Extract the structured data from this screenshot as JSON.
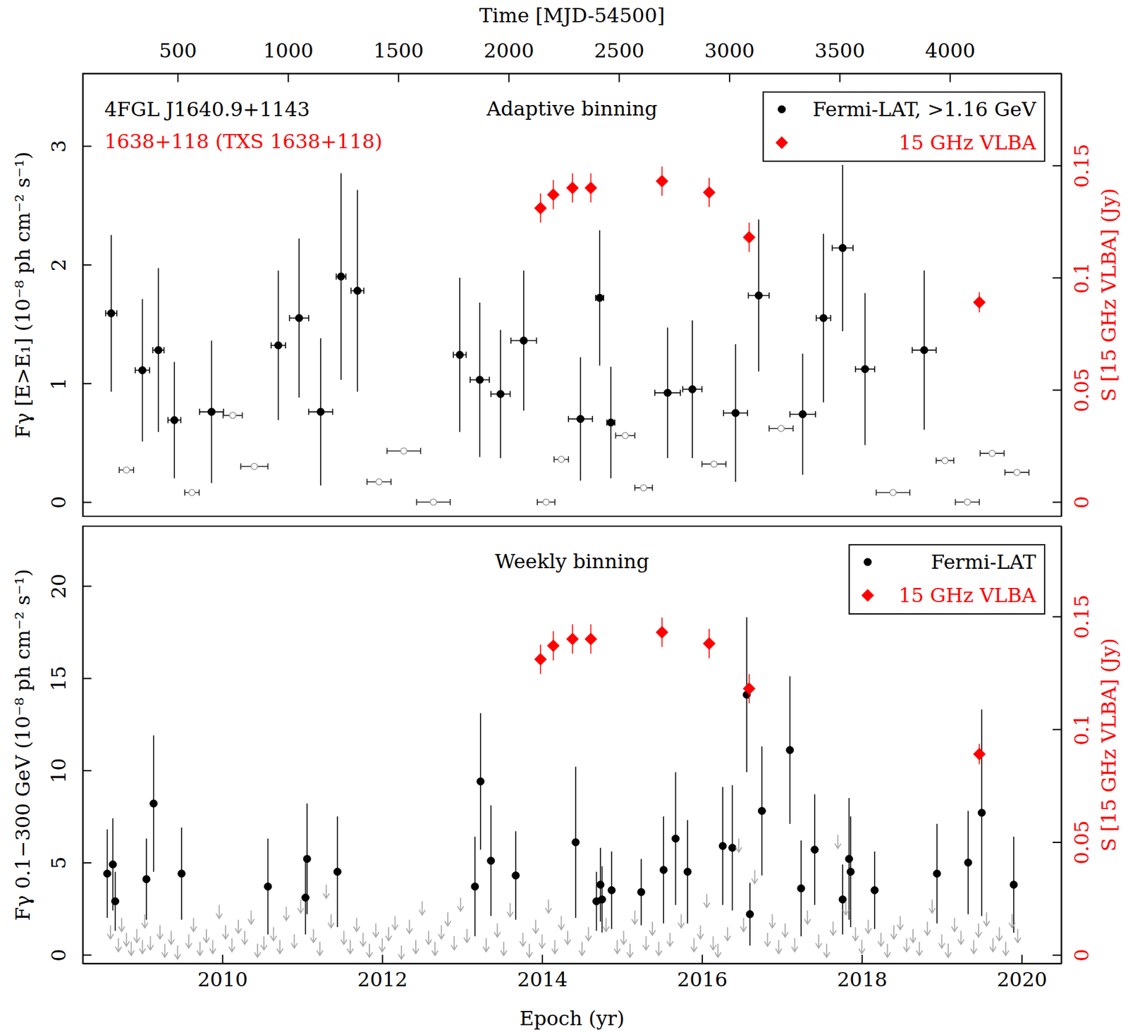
{
  "chart_data": [
    {
      "type": "scatter",
      "title": "Adaptive binning",
      "annotations": [
        {
          "text": "4FGL J1640.9+1143",
          "color": "#000000"
        },
        {
          "text": "1638+118 (TXS 1638+118)",
          "color": "#ff0000"
        }
      ],
      "xlim": [
        2008.254,
        2020.495
      ],
      "x2lim": [
        70,
        4505
      ],
      "x2ticks": [
        500,
        1000,
        1500,
        2000,
        2500,
        3000,
        3500,
        4000
      ],
      "x2label": "Time [MJD-54500]",
      "ylim": [
        -0.12,
        3.61
      ],
      "yticks": [
        0,
        1,
        2,
        3
      ],
      "ylabel": "Fγ [E>E₁] (10⁻⁸ ph cm⁻² s⁻¹)",
      "y2lim": [
        -0.0064,
        0.191
      ],
      "y2ticks": [
        0,
        0.05,
        0.1,
        0.15
      ],
      "y2label": "S [15 GHz VLBA] (Jy)",
      "legend": "upper right",
      "series": [
        {
          "name": "Fermi-LAT, >1.16 GeV",
          "color": "#000000",
          "marker": "circle",
          "x": [
            2008.61,
            2009.0,
            2009.2,
            2009.4,
            2009.865,
            2010.7,
            2010.96,
            2011.23,
            2011.485,
            2011.69,
            2012.97,
            2013.22,
            2013.48,
            2013.77,
            2014.48,
            2014.72,
            2014.86,
            2015.57,
            2015.88,
            2016.42,
            2016.71,
            2017.26,
            2017.52,
            2017.76,
            2018.04,
            2018.78
          ],
          "values": [
            1.59,
            1.11,
            1.28,
            0.69,
            0.76,
            1.32,
            1.55,
            0.76,
            1.9,
            1.78,
            1.24,
            1.03,
            0.91,
            1.36,
            0.7,
            1.72,
            0.67,
            0.92,
            0.95,
            0.75,
            1.74,
            0.74,
            1.55,
            2.14,
            1.12,
            1.28
          ],
          "errors": [
            0.66,
            0.6,
            0.69,
            0.49,
            0.6,
            0.63,
            0.67,
            0.62,
            0.87,
            0.85,
            0.65,
            0.65,
            0.54,
            0.59,
            0.52,
            0.57,
            0.47,
            0.55,
            0.58,
            0.58,
            0.64,
            0.51,
            0.71,
            0.7,
            0.64,
            0.67
          ],
          "x_errors": [
            0.07,
            0.09,
            0.07,
            0.08,
            0.15,
            0.09,
            0.12,
            0.15,
            0.06,
            0.08,
            0.08,
            0.12,
            0.12,
            0.16,
            0.15,
            0.05,
            0.05,
            0.16,
            0.12,
            0.15,
            0.13,
            0.16,
            0.09,
            0.13,
            0.12,
            0.15
          ]
        },
        {
          "color": "#999999",
          "marker": "open-circle",
          "x": [
            2008.8,
            2009.62,
            2010.13,
            2010.4,
            2011.96,
            2012.27,
            2012.64,
            2014.05,
            2014.24,
            2015.04,
            2015.27,
            2016.15,
            2016.99,
            2018.39,
            2019.04,
            2019.32,
            2019.63,
            2019.94
          ],
          "values": [
            0.27,
            0.08,
            0.73,
            0.3,
            0.17,
            0.43,
            0,
            0,
            0.36,
            0.56,
            0.12,
            0.32,
            0.62,
            0.08,
            0.35,
            0,
            0.41,
            0.25
          ],
          "x_errors": [
            0.09,
            0.09,
            0.12,
            0.17,
            0.15,
            0.21,
            0.21,
            0.11,
            0.09,
            0.12,
            0.11,
            0.15,
            0.15,
            0.21,
            0.11,
            0.15,
            0.15,
            0.15
          ]
        },
        {
          "name": "15 GHz VLBA",
          "color": "#ff0000",
          "marker": "diamond",
          "axis": "y2",
          "x": [
            2013.98,
            2014.14,
            2014.38,
            2014.61,
            2015.5,
            2016.09,
            2016.59,
            2019.47
          ],
          "values": [
            0.131,
            0.137,
            0.14,
            0.14,
            0.143,
            0.138,
            0.118,
            0.089
          ],
          "errors": [
            0.0065,
            0.0065,
            0.0065,
            0.0065,
            0.0065,
            0.0065,
            0.0065,
            0.0045
          ]
        }
      ]
    },
    {
      "type": "scatter",
      "title": "Weekly binning",
      "xlim": [
        2008.254,
        2020.495
      ],
      "xticks": [
        2010,
        2012,
        2014,
        2016,
        2018,
        2020
      ],
      "xlabel": "Epoch (yr)",
      "ylim": [
        -0.47,
        23.24
      ],
      "yticks": [
        0,
        5,
        10,
        15,
        20
      ],
      "ylabel": "Fγ 0.1−300 GeV (10⁻⁸ ph cm⁻² s⁻¹)",
      "y2lim": [
        -0.0038,
        0.19
      ],
      "y2ticks": [
        0,
        0.05,
        0.1,
        0.15
      ],
      "y2label": "S [15 GHz VLBA] (Jy)",
      "legend": "upper right",
      "series": [
        {
          "name": "Fermi-LAT",
          "color": "#000000",
          "marker": "circle",
          "x": [
            2008.56,
            2008.63,
            2008.66,
            2009.05,
            2009.14,
            2009.49,
            2010.57,
            2011.04,
            2011.06,
            2011.44,
            2013.16,
            2013.23,
            2013.36,
            2013.67,
            2014.42,
            2014.68,
            2014.73,
            2014.75,
            2014.87,
            2015.24,
            2015.52,
            2015.67,
            2015.82,
            2016.26,
            2016.38,
            2016.56,
            2016.6,
            2016.75,
            2017.1,
            2017.24,
            2017.41,
            2017.76,
            2017.84,
            2017.86,
            2018.16,
            2018.94,
            2019.33,
            2019.5,
            2019.9
          ],
          "values": [
            4.4,
            4.9,
            2.9,
            4.1,
            8.2,
            4.4,
            3.7,
            3.1,
            5.2,
            4.5,
            3.7,
            9.4,
            5.1,
            4.3,
            6.1,
            2.9,
            3.8,
            3.0,
            3.5,
            3.4,
            4.6,
            6.3,
            4.5,
            5.9,
            5.8,
            14.1,
            2.2,
            7.8,
            11.1,
            3.6,
            5.7,
            3.0,
            5.2,
            4.5,
            3.5,
            4.4,
            5.0,
            7.7,
            3.8
          ],
          "errors": [
            2.4,
            2.5,
            1.6,
            2.2,
            3.7,
            2.5,
            2.6,
            2.0,
            3.0,
            3.0,
            2.7,
            3.7,
            3.0,
            2.4,
            4.1,
            1.6,
            2.0,
            1.8,
            2.1,
            1.8,
            2.9,
            3.6,
            2.8,
            3.2,
            3.4,
            4.2,
            1.7,
            3.5,
            4.0,
            2.6,
            3.0,
            1.9,
            3.3,
            3.0,
            2.1,
            2.7,
            2.8,
            5.6,
            2.6
          ]
        },
        {
          "color": "#aaaaaa",
          "marker": "arrow-down",
          "x": [
            2008.6,
            2008.7,
            2008.74,
            2008.8,
            2008.86,
            2008.93,
            2009.0,
            2009.03,
            2009.1,
            2009.22,
            2009.28,
            2009.36,
            2009.44,
            2009.58,
            2009.64,
            2009.72,
            2009.8,
            2009.88,
            2009.96,
            2010.04,
            2010.12,
            2010.2,
            2010.28,
            2010.36,
            2010.44,
            2010.52,
            2010.64,
            2010.72,
            2010.8,
            2010.9,
            2010.98,
            2011.14,
            2011.22,
            2011.3,
            2011.36,
            2011.52,
            2011.6,
            2011.68,
            2011.76,
            2011.84,
            2011.92,
            2012.0,
            2012.08,
            2012.16,
            2012.24,
            2012.34,
            2012.42,
            2012.5,
            2012.58,
            2012.66,
            2012.74,
            2012.82,
            2012.9,
            2012.98,
            2013.06,
            2013.3,
            2013.44,
            2013.52,
            2013.6,
            2013.76,
            2013.84,
            2013.92,
            2014.0,
            2014.08,
            2014.16,
            2014.24,
            2014.32,
            2014.5,
            2014.58,
            2014.8,
            2014.94,
            2015.02,
            2015.1,
            2015.16,
            2015.3,
            2015.38,
            2015.46,
            2015.6,
            2015.74,
            2015.9,
            2015.98,
            2016.06,
            2016.14,
            2016.2,
            2016.32,
            2016.46,
            2016.52,
            2016.66,
            2016.82,
            2016.88,
            2016.96,
            2017.04,
            2017.16,
            2017.32,
            2017.46,
            2017.56,
            2017.64,
            2017.7,
            2017.8,
            2017.92,
            2018.0,
            2018.08,
            2018.24,
            2018.32,
            2018.4,
            2018.48,
            2018.56,
            2018.64,
            2018.72,
            2018.82,
            2018.88,
            2019.0,
            2019.08,
            2019.16,
            2019.24,
            2019.4,
            2019.46,
            2019.56,
            2019.64,
            2019.72,
            2019.8,
            2019.88,
            2019.95
          ],
          "values": [
            1.6,
            0.9,
            2.0,
            1.2,
            0.7,
            1.4,
            0.8,
            2.2,
            1.0,
            1.6,
            0.6,
            1.3,
            0.5,
            1.1,
            2.0,
            0.7,
            1.4,
            0.8,
            2.7,
            1.6,
            0.9,
            1.9,
            1.3,
            2.4,
            0.6,
            1.0,
            1.5,
            0.8,
            2.6,
            1.1,
            3.0,
            1.4,
            0.7,
            3.8,
            2.2,
            1.3,
            0.8,
            2.0,
            1.2,
            0.6,
            1.7,
            0.9,
            1.5,
            2.1,
            0.5,
            1.9,
            0.8,
            2.9,
            1.3,
            0.7,
            1.6,
            2.3,
            1.0,
            3.1,
            1.4,
            0.9,
            1.7,
            0.7,
            2.8,
            1.2,
            0.6,
            1.9,
            1.1,
            3.0,
            0.8,
            2.1,
            1.3,
            0.7,
            1.5,
            2.0,
            0.8,
            1.3,
            0.6,
            2.4,
            1.0,
            1.8,
            0.7,
            1.2,
            2.2,
            0.9,
            1.6,
            3.3,
            1.0,
            0.6,
            1.5,
            6.3,
            2.0,
            4.6,
            1.2,
            2.2,
            0.8,
            1.7,
            0.9,
            2.4,
            1.1,
            0.6,
            1.8,
            6.5,
            2.9,
            1.5,
            0.8,
            1.9,
            1.2,
            0.6,
            1.6,
            2.1,
            0.9,
            1.4,
            0.7,
            1.8,
            3.0,
            1.1,
            0.6,
            2.0,
            1.3,
            0.8,
            1.7,
            2.3,
            0.9,
            1.5,
            0.7,
            2.2,
            1.4
          ]
        },
        {
          "name": "15 GHz VLBA",
          "color": "#ff0000",
          "marker": "diamond",
          "axis": "y2",
          "x": [
            2013.98,
            2014.14,
            2014.38,
            2014.61,
            2015.5,
            2016.09,
            2016.59,
            2019.47
          ],
          "values": [
            0.131,
            0.137,
            0.14,
            0.14,
            0.143,
            0.138,
            0.118,
            0.089
          ],
          "errors": [
            0.0065,
            0.0065,
            0.0065,
            0.0065,
            0.0065,
            0.0065,
            0.0065,
            0.0045
          ]
        }
      ]
    }
  ]
}
